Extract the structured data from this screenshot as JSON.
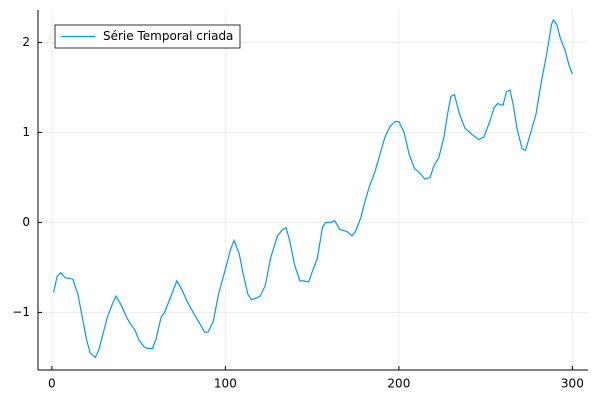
{
  "chart_data": {
    "type": "line",
    "x": [
      1,
      3,
      5,
      8,
      10,
      12,
      15,
      18,
      20,
      22,
      25,
      27,
      30,
      32,
      35,
      37,
      40,
      43,
      45,
      48,
      50,
      53,
      55,
      58,
      60,
      63,
      65,
      68,
      72,
      75,
      78,
      80,
      83,
      86,
      88,
      90,
      93,
      96,
      100,
      103,
      105,
      108,
      110,
      113,
      115,
      118,
      120,
      123,
      126,
      130,
      133,
      135,
      137,
      140,
      143,
      145,
      148,
      150,
      153,
      156,
      158,
      161,
      163,
      166,
      170,
      173,
      175,
      178,
      180,
      183,
      186,
      189,
      192,
      195,
      198,
      200,
      203,
      206,
      209,
      212,
      215,
      218,
      220,
      223,
      226,
      228,
      230,
      232,
      235,
      238,
      242,
      246,
      249,
      252,
      255,
      257,
      260,
      262,
      264,
      266,
      268,
      271,
      273,
      276,
      279,
      282,
      285,
      288,
      289,
      291,
      293,
      296,
      298,
      300
    ],
    "series": [
      {
        "name": "Série Temporal criada",
        "color": "#009af9",
        "values": [
          -0.78,
          -0.6,
          -0.56,
          -0.62,
          -0.62,
          -0.63,
          -0.8,
          -1.1,
          -1.3,
          -1.45,
          -1.5,
          -1.42,
          -1.2,
          -1.05,
          -0.9,
          -0.82,
          -0.92,
          -1.05,
          -1.12,
          -1.2,
          -1.3,
          -1.38,
          -1.4,
          -1.4,
          -1.3,
          -1.05,
          -1.0,
          -0.85,
          -0.65,
          -0.75,
          -0.88,
          -0.95,
          -1.05,
          -1.15,
          -1.22,
          -1.22,
          -1.1,
          -0.8,
          -0.52,
          -0.3,
          -0.2,
          -0.35,
          -0.55,
          -0.8,
          -0.86,
          -0.84,
          -0.82,
          -0.7,
          -0.4,
          -0.15,
          -0.08,
          -0.06,
          -0.2,
          -0.48,
          -0.65,
          -0.65,
          -0.66,
          -0.55,
          -0.4,
          -0.05,
          0.0,
          0.0,
          0.02,
          -0.08,
          -0.1,
          -0.15,
          -0.1,
          0.05,
          0.2,
          0.4,
          0.55,
          0.75,
          0.95,
          1.07,
          1.12,
          1.12,
          1.0,
          0.75,
          0.6,
          0.55,
          0.48,
          0.5,
          0.62,
          0.72,
          0.95,
          1.2,
          1.4,
          1.42,
          1.2,
          1.05,
          0.98,
          0.92,
          0.95,
          1.1,
          1.28,
          1.32,
          1.3,
          1.45,
          1.47,
          1.3,
          1.05,
          0.82,
          0.8,
          1.0,
          1.2,
          1.55,
          1.85,
          2.2,
          2.25,
          2.2,
          2.05,
          1.9,
          1.75,
          1.65
        ]
      }
    ],
    "xlim": [
      -8,
      309
    ],
    "xticks": [
      0,
      100,
      200,
      300
    ],
    "ylim": [
      -1.64,
      2.36
    ],
    "yticks": [
      {
        "value": -1,
        "label": "−1"
      },
      0,
      1,
      2
    ],
    "grid": true,
    "legend": "top-left"
  }
}
